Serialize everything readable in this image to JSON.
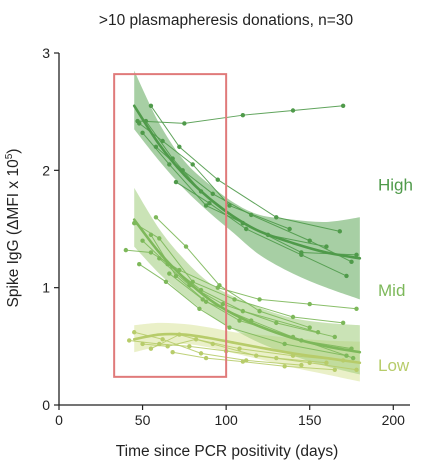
{
  "chart_data": {
    "type": "line",
    "title": ">10 plasmapheresis donations, n=30",
    "xlabel": "Time since PCR positivity (days)",
    "ylabel": "Spike IgG (ΔMFI x 10",
    "ylabel_superscript": "5",
    "ylabel_close": ")",
    "xlim": [
      0,
      210
    ],
    "ylim": [
      0,
      3
    ],
    "x_ticks": [
      {
        "value": 0,
        "label": "0"
      },
      {
        "value": 50,
        "label": "50"
      },
      {
        "value": 100,
        "label": "100"
      },
      {
        "value": 150,
        "label": "150"
      },
      {
        "value": 200,
        "label": "200"
      }
    ],
    "y_ticks": [
      {
        "value": 0,
        "label": "0"
      },
      {
        "value": 1,
        "label": "1"
      },
      {
        "value": 2,
        "label": "2"
      },
      {
        "value": 3,
        "label": "3"
      }
    ],
    "grid": false,
    "highlight_box": {
      "x": [
        33,
        100
      ],
      "y": [
        0.24,
        2.82
      ],
      "color": "#e07a7a"
    },
    "groups": [
      {
        "name": "High",
        "color": "#4f9a4a",
        "fill": "#5fa85a",
        "fit": {
          "x": [
            45,
            60,
            75,
            90,
            105,
            120,
            140,
            160,
            180
          ],
          "y": [
            2.55,
            2.22,
            1.96,
            1.76,
            1.6,
            1.48,
            1.38,
            1.3,
            1.25
          ],
          "lower": [
            2.35,
            2.08,
            1.84,
            1.64,
            1.46,
            1.28,
            1.12,
            1.0,
            0.9
          ],
          "upper": [
            2.85,
            2.4,
            2.08,
            1.88,
            1.72,
            1.62,
            1.58,
            1.56,
            1.6
          ]
        },
        "series": [
          {
            "x": [
              47,
              75,
              110,
              140,
              170
            ],
            "y": [
              2.42,
              2.4,
              2.47,
              2.51,
              2.55
            ]
          },
          {
            "x": [
              52,
              68,
              85,
              110,
              145,
              178
            ],
            "y": [
              2.42,
              2.1,
              1.82,
              1.55,
              1.3,
              1.28
            ]
          },
          {
            "x": [
              55,
              72,
              95,
              130,
              168
            ],
            "y": [
              2.55,
              2.2,
              1.92,
              1.6,
              1.48
            ]
          },
          {
            "x": [
              48,
              62,
              80,
              102,
              138
            ],
            "y": [
              2.4,
              2.25,
              2.05,
              1.7,
              1.5
            ]
          },
          {
            "x": [
              58,
              74,
              92,
              115,
              150,
              175
            ],
            "y": [
              2.2,
              2.0,
              1.8,
              1.62,
              1.4,
              1.22
            ]
          },
          {
            "x": [
              50,
              66,
              88,
              125,
              160
            ],
            "y": [
              2.32,
              2.05,
              1.7,
              1.45,
              1.35
            ]
          },
          {
            "x": [
              70,
              90,
              112,
              145,
              172
            ],
            "y": [
              1.9,
              1.72,
              1.5,
              1.28,
              1.1
            ]
          }
        ]
      },
      {
        "name": "Mid",
        "color": "#7db85a",
        "fill": "#9fcc7a",
        "fit": {
          "x": [
            45,
            60,
            75,
            90,
            105,
            120,
            140,
            160,
            180
          ],
          "y": [
            1.58,
            1.3,
            1.08,
            0.9,
            0.77,
            0.67,
            0.57,
            0.5,
            0.45
          ],
          "lower": [
            1.35,
            1.12,
            0.93,
            0.77,
            0.64,
            0.53,
            0.42,
            0.33,
            0.26
          ],
          "upper": [
            1.85,
            1.5,
            1.24,
            1.04,
            0.92,
            0.83,
            0.74,
            0.7,
            0.68
          ]
        },
        "series": [
          {
            "x": [
              40,
              55,
              72,
              95,
              120,
              150,
              178
            ],
            "y": [
              1.32,
              1.3,
              1.15,
              1.0,
              0.9,
              0.86,
              0.82
            ]
          },
          {
            "x": [
              45,
              60,
              80,
              105,
              140,
              170
            ],
            "y": [
              1.55,
              1.42,
              1.05,
              0.9,
              0.75,
              0.7
            ]
          },
          {
            "x": [
              50,
              65,
              85,
              110,
              155
            ],
            "y": [
              1.4,
              1.2,
              0.98,
              0.8,
              0.62
            ]
          },
          {
            "x": [
              55,
              70,
              88,
              115,
              145,
              175
            ],
            "y": [
              1.45,
              1.1,
              0.88,
              0.72,
              0.55,
              0.48
            ]
          },
          {
            "x": [
              60,
              78,
              98,
              130,
              165
            ],
            "y": [
              1.25,
              1.02,
              0.86,
              0.7,
              0.58
            ]
          },
          {
            "x": [
              48,
              64,
              84,
              102,
              135,
              172
            ],
            "y": [
              1.2,
              1.05,
              0.82,
              0.66,
              0.52,
              0.42
            ]
          },
          {
            "x": [
              66,
              86,
              108,
              140,
              176
            ],
            "y": [
              1.12,
              0.9,
              0.72,
              0.58,
              0.4
            ]
          },
          {
            "x": [
              58,
              76,
              96,
              120,
              150
            ],
            "y": [
              1.6,
              1.35,
              1.02,
              0.8,
              0.66
            ]
          }
        ]
      },
      {
        "name": "Low",
        "color": "#b7cc6a",
        "fill": "#d8e49a",
        "fit": {
          "x": [
            45,
            60,
            75,
            90,
            105,
            120,
            140,
            160,
            180
          ],
          "y": [
            0.56,
            0.6,
            0.6,
            0.57,
            0.53,
            0.49,
            0.44,
            0.4,
            0.36
          ],
          "lower": [
            0.45,
            0.5,
            0.52,
            0.49,
            0.44,
            0.39,
            0.32,
            0.26,
            0.2
          ],
          "upper": [
            0.68,
            0.7,
            0.69,
            0.66,
            0.62,
            0.6,
            0.57,
            0.55,
            0.54
          ]
        },
        "series": [
          {
            "x": [
              42,
              60,
              78,
              100,
              130,
              160
            ],
            "y": [
              0.55,
              0.52,
              0.5,
              0.46,
              0.4,
              0.36
            ]
          },
          {
            "x": [
              50,
              65,
              82,
              108,
              140,
              170
            ],
            "y": [
              0.52,
              0.5,
              0.56,
              0.48,
              0.42,
              0.38
            ]
          },
          {
            "x": [
              55,
              72,
              92,
              118,
              150,
              178
            ],
            "y": [
              0.48,
              0.6,
              0.52,
              0.42,
              0.36,
              0.3
            ]
          },
          {
            "x": [
              45,
              62,
              85,
              112,
              145
            ],
            "y": [
              0.62,
              0.56,
              0.44,
              0.38,
              0.34
            ]
          },
          {
            "x": [
              68,
              88,
              110,
              135,
              165
            ],
            "y": [
              0.45,
              0.4,
              0.37,
              0.33,
              0.3
            ]
          }
        ]
      }
    ]
  }
}
